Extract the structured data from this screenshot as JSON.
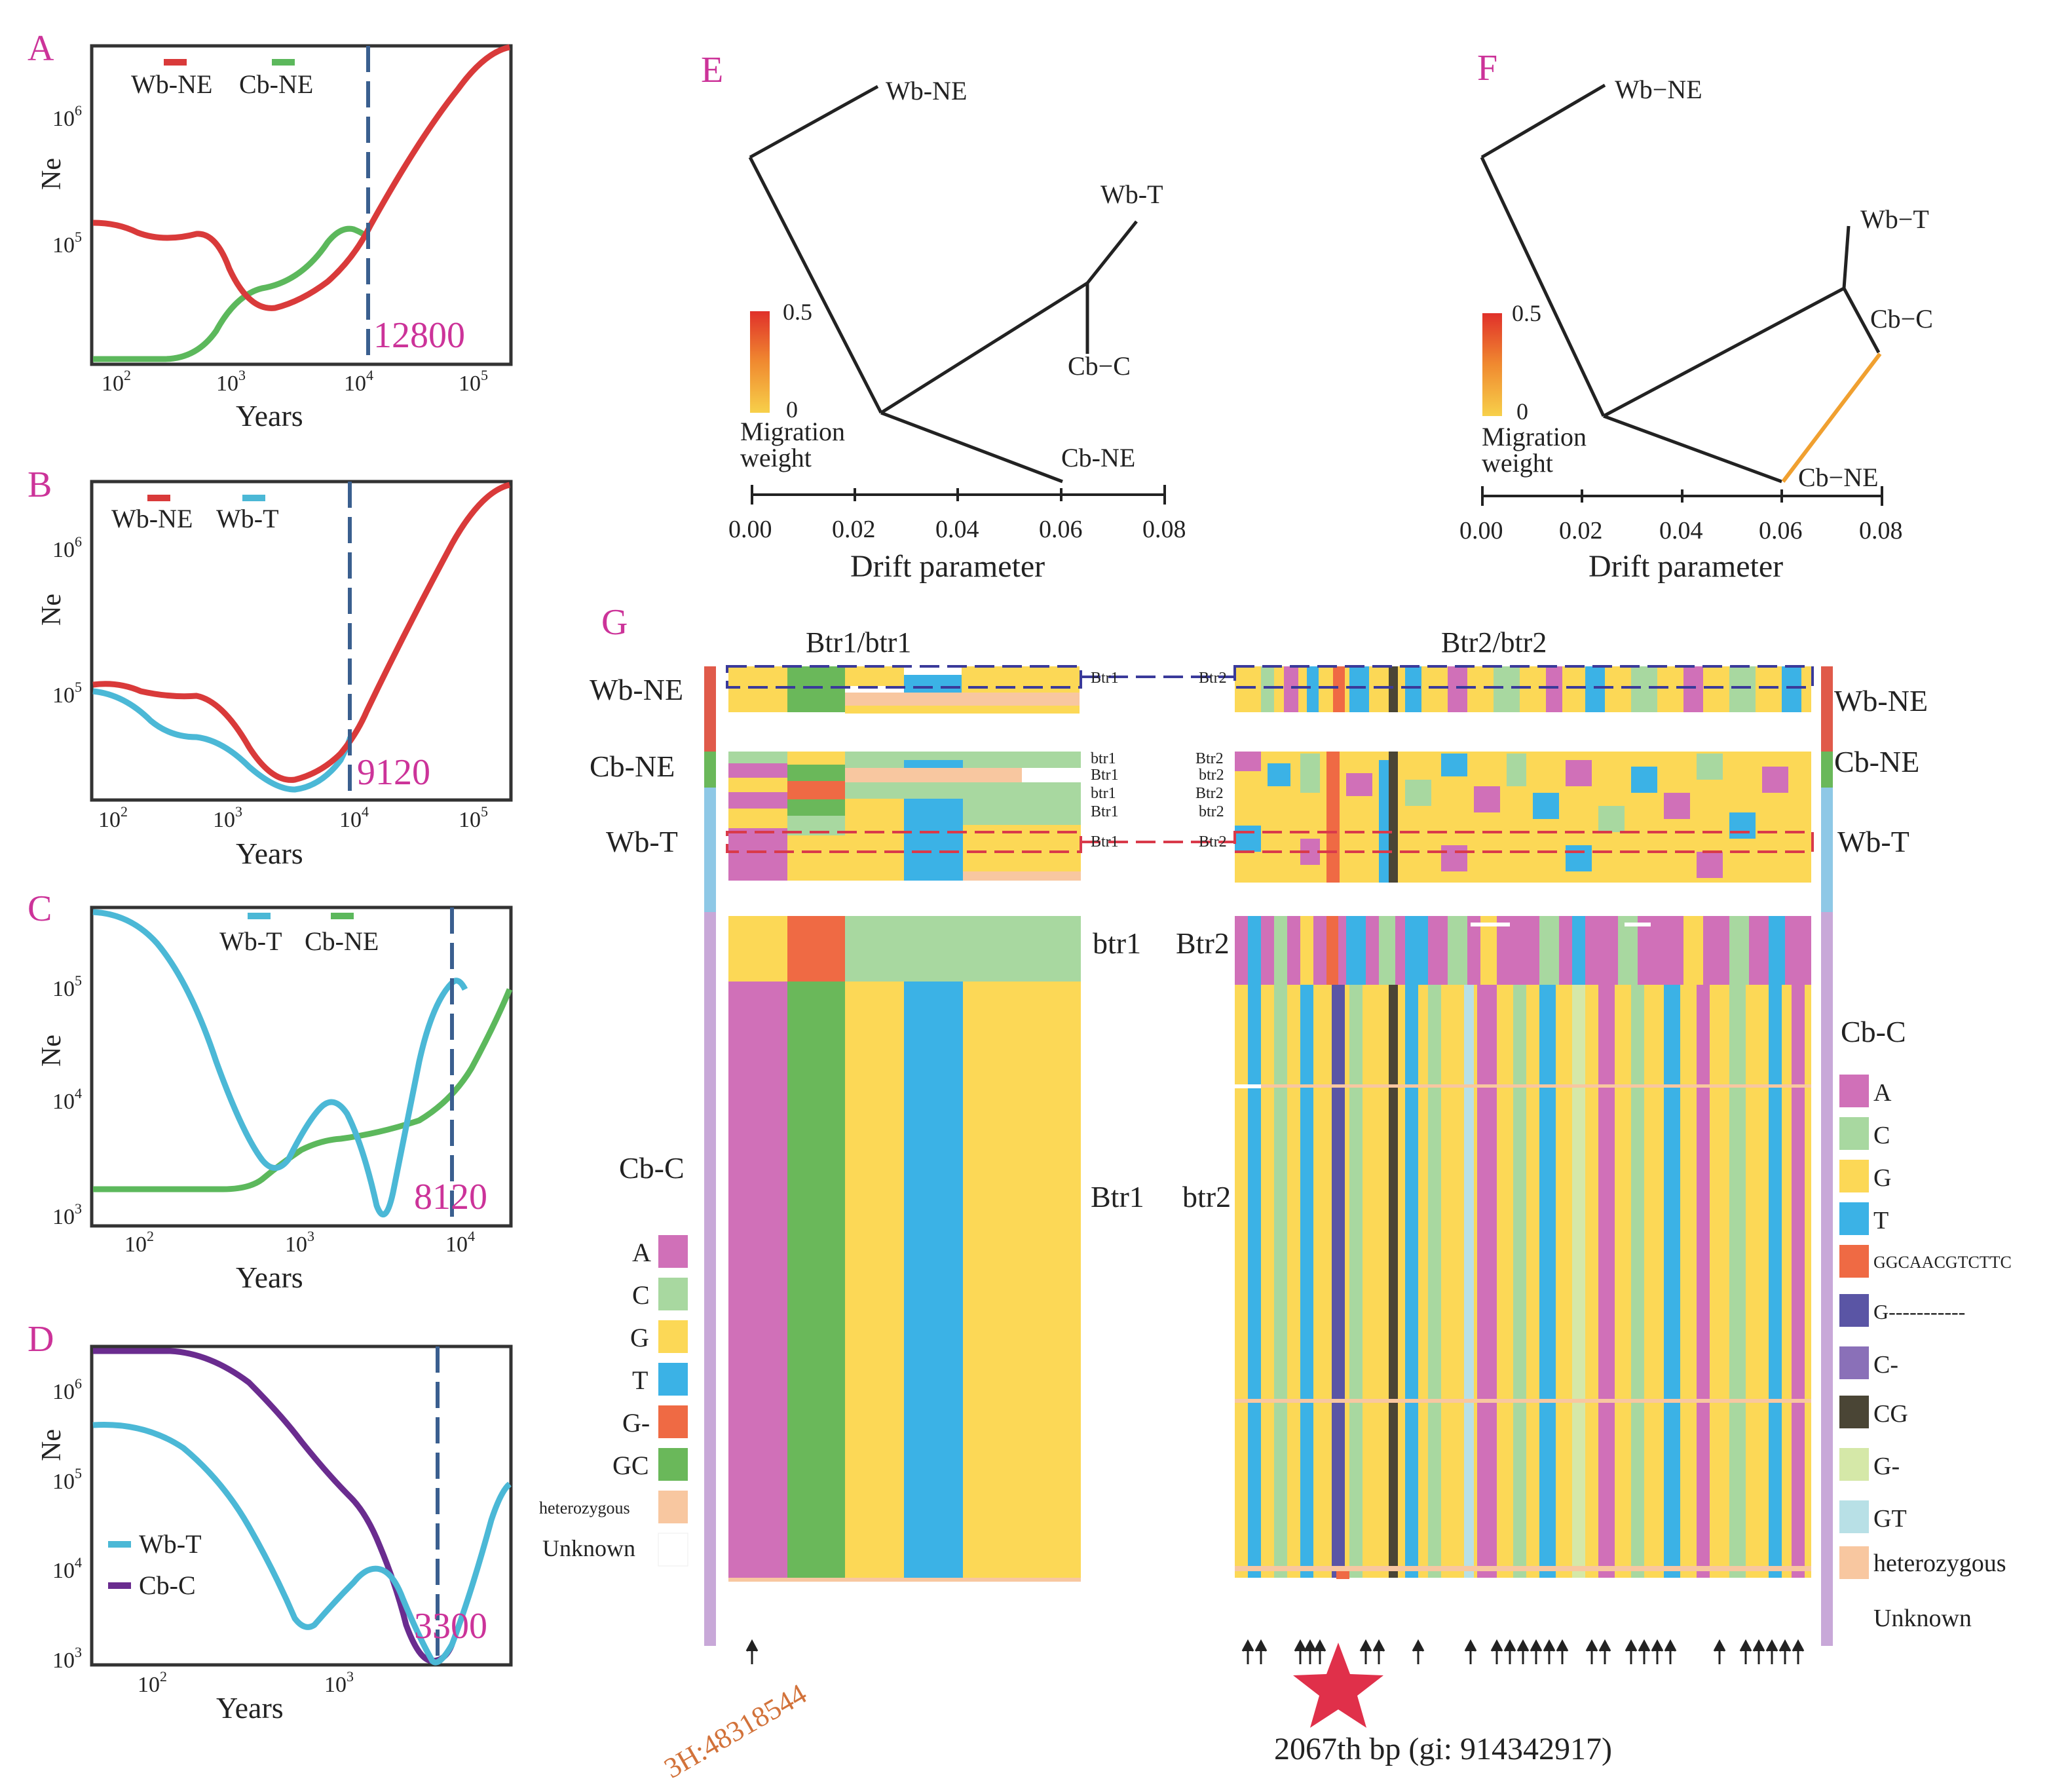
{
  "figure": {
    "panels": {
      "A": {
        "letter": "A",
        "legend": [
          "Wb-NE",
          "Cb-NE"
        ],
        "ylabel": "Ne",
        "xlabel": "Years",
        "yticks": [
          {
            "label": "10",
            "exp": "6"
          },
          {
            "label": "10",
            "exp": "5"
          }
        ],
        "xticks": [
          {
            "label": "10",
            "exp": "2"
          },
          {
            "label": "10",
            "exp": "3"
          },
          {
            "label": "10",
            "exp": "4"
          },
          {
            "label": "10",
            "exp": "5"
          }
        ],
        "annotation": "12800"
      },
      "B": {
        "letter": "B",
        "legend": [
          "Wb-NE",
          "Wb-T"
        ],
        "ylabel": "Ne",
        "xlabel": "Years",
        "yticks": [
          {
            "label": "10",
            "exp": "6"
          },
          {
            "label": "10",
            "exp": "5"
          }
        ],
        "xticks": [
          {
            "label": "10",
            "exp": "2"
          },
          {
            "label": "10",
            "exp": "3"
          },
          {
            "label": "10",
            "exp": "4"
          },
          {
            "label": "10",
            "exp": "5"
          }
        ],
        "annotation": "9120"
      },
      "C": {
        "letter": "C",
        "legend": [
          "Wb-T",
          "Cb-NE"
        ],
        "ylabel": "Ne",
        "xlabel": "Years",
        "yticks": [
          {
            "label": "10",
            "exp": "5"
          },
          {
            "label": "10",
            "exp": "4"
          },
          {
            "label": "10",
            "exp": "3"
          }
        ],
        "xticks": [
          {
            "label": "10",
            "exp": "2"
          },
          {
            "label": "10",
            "exp": "3"
          },
          {
            "label": "10",
            "exp": "4"
          }
        ],
        "annotation": "8120"
      },
      "D": {
        "letter": "D",
        "legend": [
          "Wb-T",
          "Cb-C"
        ],
        "ylabel": "Ne",
        "xlabel": "Years",
        "yticks": [
          {
            "label": "10",
            "exp": "6"
          },
          {
            "label": "10",
            "exp": "5"
          },
          {
            "label": "10",
            "exp": "4"
          },
          {
            "label": "10",
            "exp": "3"
          }
        ],
        "xticks": [
          {
            "label": "10",
            "exp": "2"
          },
          {
            "label": "10",
            "exp": "3"
          }
        ],
        "annotation": "3300"
      },
      "E": {
        "letter": "E",
        "leaves": [
          "Wb-NE",
          "Wb-T",
          "Cb−C",
          "Cb-NE"
        ],
        "scale_max": "0.5",
        "scale_min": "0",
        "scale_label_1": "Migration",
        "scale_label_2": "weight",
        "xticks": [
          "0.00",
          "0.02",
          "0.04",
          "0.06",
          "0.08"
        ],
        "xlabel": "Drift parameter"
      },
      "F": {
        "letter": "F",
        "leaves": [
          "Wb−NE",
          "Wb−T",
          "Cb−C",
          "Cb−NE"
        ],
        "scale_max": "0.5",
        "scale_min": "0",
        "scale_label_1": "Migration",
        "scale_label_2": "weight",
        "xticks": [
          "0.00",
          "0.02",
          "0.04",
          "0.06",
          "0.08"
        ],
        "xlabel": "Drift parameter"
      },
      "G": {
        "letter": "G",
        "title_left": "Btr1/btr1",
        "title_right": "Btr2/btr2",
        "groups_left": [
          "Wb-NE",
          "Cb-NE",
          "Wb-T",
          "Cb-C"
        ],
        "groups_right": [
          "Wb-NE",
          "Cb-NE",
          "Wb-T",
          "Cb-C"
        ],
        "genotypes_left": [
          "Btr1",
          "btr1",
          "Btr1",
          "btr1",
          "Btr1",
          "Btr1"
        ],
        "genotypes_right": [
          "Btr2",
          "Btr2",
          "btr2",
          "Btr2",
          "btr2",
          "Btr2"
        ],
        "big_labels": {
          "btr1": "btr1",
          "Btr2": "Btr2",
          "Btr1": "Btr1",
          "btr2": "btr2"
        },
        "legend_left": [
          "A",
          "C",
          "G",
          "T",
          "G-",
          "GC",
          "heterozygous",
          "Unknown"
        ],
        "legend_right": [
          "A",
          "C",
          "G",
          "T",
          "GGCAACGTCTTC",
          "G-----------",
          "C-",
          "CG",
          "G-",
          "GT",
          "heterozygous",
          "Unknown"
        ],
        "locus_label": "3H:48318544",
        "star_label": "2067th bp (gi: 914342917)"
      }
    },
    "colors": {
      "red": "#d93a3a",
      "green": "#5cb85c",
      "cyan": "#4bb8d6",
      "purple": "#6a2c8f",
      "dashed": "#3a5f8f",
      "pink": "#d070b8",
      "lightgreen": "#a8d8a0",
      "yellow": "#fcd856",
      "blue": "#3bb2e6",
      "orange": "#ef6a44",
      "darkgreen": "#6ab85a",
      "peach": "#f8c7a0",
      "indigo": "#5a55a5",
      "violet": "#8a70b8",
      "dark": "#4a4535",
      "paleolive": "#d5e8a8",
      "paleblue": "#b8e0e6",
      "magenta": "#cc3399",
      "rust": "#d2723a"
    }
  }
}
